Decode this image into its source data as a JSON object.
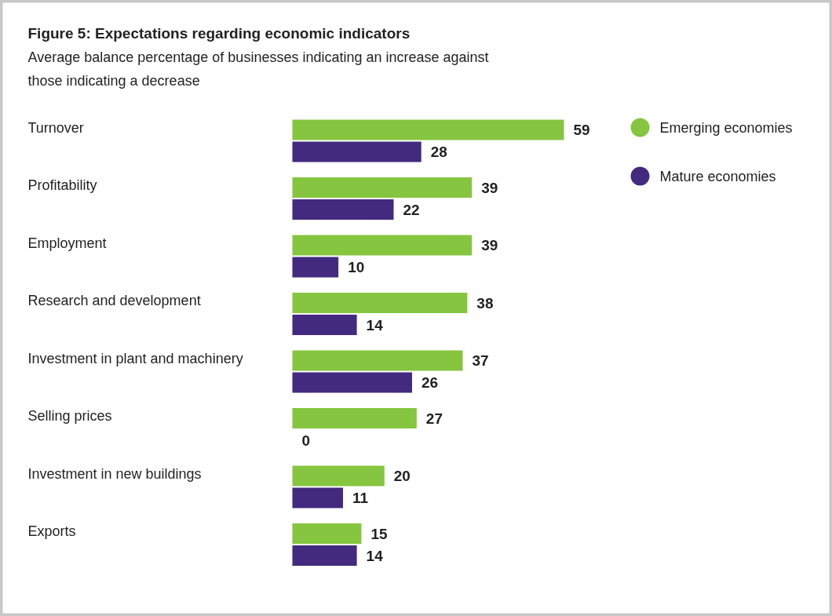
{
  "chart_data": {
    "type": "bar",
    "orientation": "horizontal",
    "title": "Figure 5: Expectations regarding economic indicators",
    "subtitle": "Average balance percentage of businesses indicating an increase against those indicating a decrease",
    "categories": [
      "Turnover",
      "Profitability",
      "Employment",
      "Research and development",
      "Investment in plant and machinery",
      "Selling prices",
      "Investment in new buildings",
      "Exports"
    ],
    "series": [
      {
        "name": "Emerging economies",
        "color": "#86c540",
        "values": [
          59,
          39,
          39,
          38,
          37,
          27,
          20,
          15
        ]
      },
      {
        "name": "Mature economies",
        "color": "#432a7e",
        "values": [
          28,
          22,
          10,
          14,
          26,
          0,
          11,
          14
        ]
      }
    ],
    "data_labels": true,
    "legend": "top right"
  }
}
